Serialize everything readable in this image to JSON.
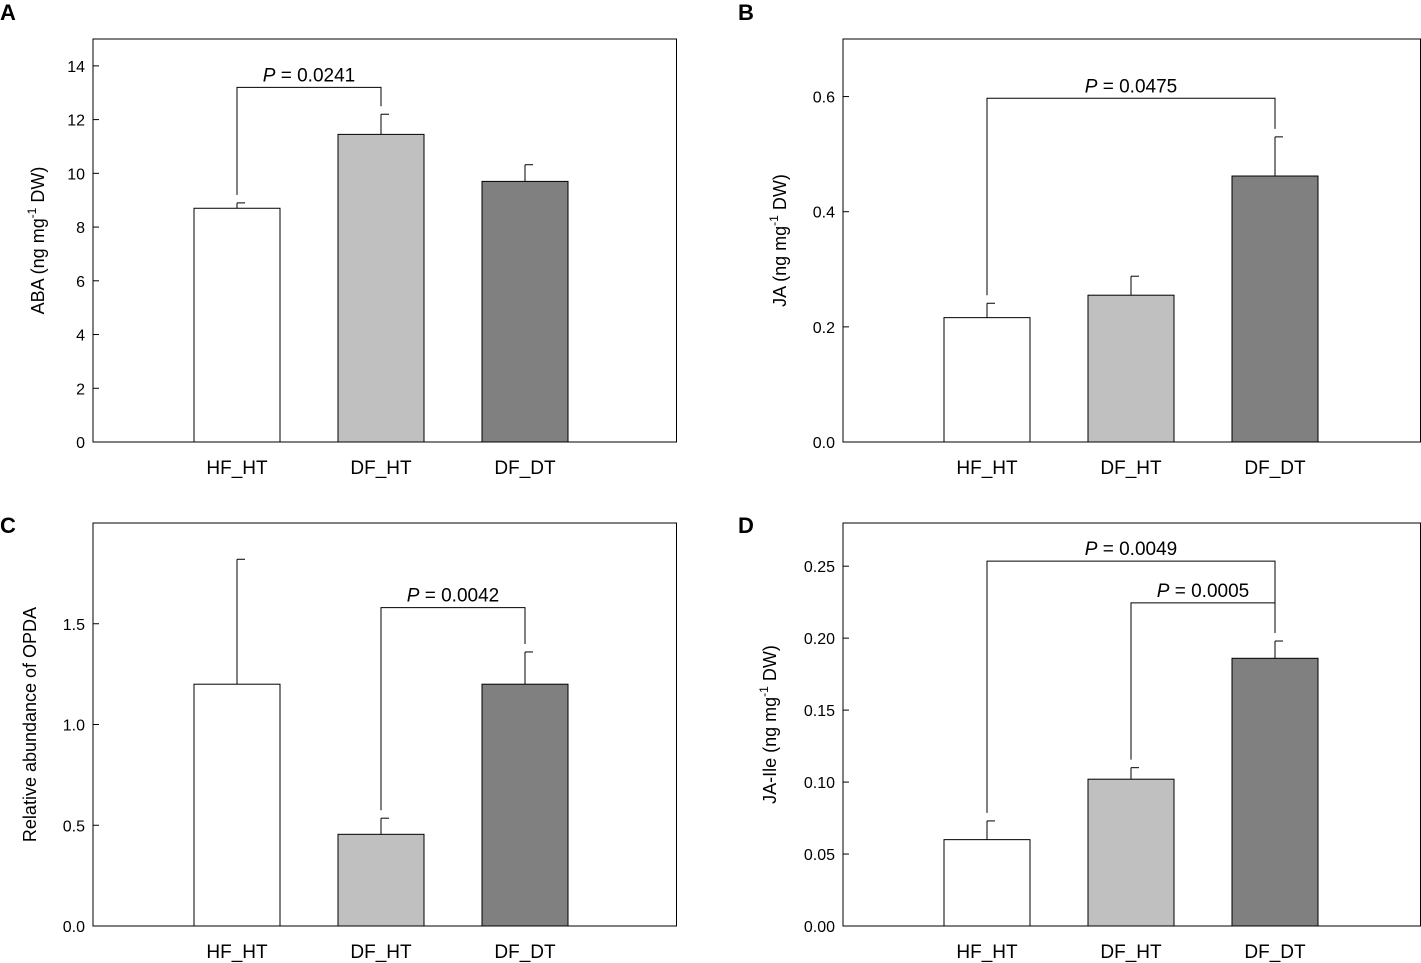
{
  "chart_data": [
    {
      "panel": "A",
      "type": "bar",
      "categories": [
        "HF_HT",
        "DF_HT",
        "DF_DT"
      ],
      "values": [
        8.7,
        11.45,
        9.7
      ],
      "errors": [
        0.2,
        0.75,
        0.62
      ],
      "colors": [
        "#ffffff",
        "#c0c0c0",
        "#808080"
      ],
      "ylabel": {
        "main": "ABA (ng mg",
        "sup": "-1",
        "tail": " DW)"
      },
      "ylim": [
        0,
        15
      ],
      "yticks": [
        "0",
        "2",
        "4",
        "6",
        "8",
        "10",
        "12",
        "14"
      ],
      "ytick_values": [
        0,
        2,
        4,
        6,
        8,
        10,
        12,
        14
      ],
      "comparisons": [
        {
          "from": 0,
          "to": 1,
          "italic": "P",
          "text": " = 0.0241",
          "y": 13.2
        }
      ]
    },
    {
      "panel": "B",
      "type": "bar",
      "categories": [
        "HF_HT",
        "DF_HT",
        "DF_DT"
      ],
      "values": [
        0.216,
        0.255,
        0.462
      ],
      "errors": [
        0.025,
        0.033,
        0.068
      ],
      "colors": [
        "#ffffff",
        "#c0c0c0",
        "#808080"
      ],
      "ylabel": {
        "main": "JA (ng mg",
        "sup": "-1",
        "tail": " DW)"
      },
      "ylim": [
        0,
        0.7
      ],
      "yticks": [
        "0.0",
        "0.2",
        "0.4",
        "0.6"
      ],
      "ytick_values": [
        0,
        0.2,
        0.4,
        0.6
      ],
      "comparisons": [
        {
          "from": 0,
          "to": 2,
          "italic": "P",
          "text": " = 0.0475",
          "y": 0.597
        }
      ]
    },
    {
      "panel": "C",
      "type": "bar",
      "categories": [
        "HF_HT",
        "DF_HT",
        "DF_DT"
      ],
      "values": [
        1.2,
        0.455,
        1.2
      ],
      "errors": [
        0.62,
        0.08,
        0.16
      ],
      "colors": [
        "#ffffff",
        "#c0c0c0",
        "#808080"
      ],
      "ylabel": {
        "main": "Relative abundance of OPDA",
        "sup": "",
        "tail": ""
      },
      "ylim": [
        0,
        2.0
      ],
      "yticks": [
        "0.0",
        "0.5",
        "1.0",
        "1.5"
      ],
      "ytick_values": [
        0,
        0.5,
        1.0,
        1.5
      ],
      "comparisons": [
        {
          "from": 1,
          "to": 2,
          "italic": "P",
          "text": " = 0.0042",
          "y": 1.58
        }
      ]
    },
    {
      "panel": "D",
      "type": "bar",
      "categories": [
        "HF_HT",
        "DF_HT",
        "DF_DT"
      ],
      "values": [
        0.06,
        0.102,
        0.186
      ],
      "errors": [
        0.013,
        0.008,
        0.012
      ],
      "colors": [
        "#ffffff",
        "#c0c0c0",
        "#808080"
      ],
      "ylabel": {
        "main": "JA-Ile (ng mg",
        "sup": "-1",
        "tail": " DW)"
      },
      "ylim": [
        0,
        0.28
      ],
      "yticks": [
        "0.00",
        "0.05",
        "0.10",
        "0.15",
        "0.20",
        "0.25"
      ],
      "ytick_values": [
        0,
        0.05,
        0.1,
        0.15,
        0.2,
        0.25
      ],
      "comparisons": [
        {
          "from": 0,
          "to": 2,
          "italic": "P",
          "text": " = 0.0049",
          "y": 0.2535
        },
        {
          "from": 1,
          "to": 2,
          "italic": "P",
          "text": " = 0.0005",
          "y": 0.2245
        }
      ]
    }
  ]
}
